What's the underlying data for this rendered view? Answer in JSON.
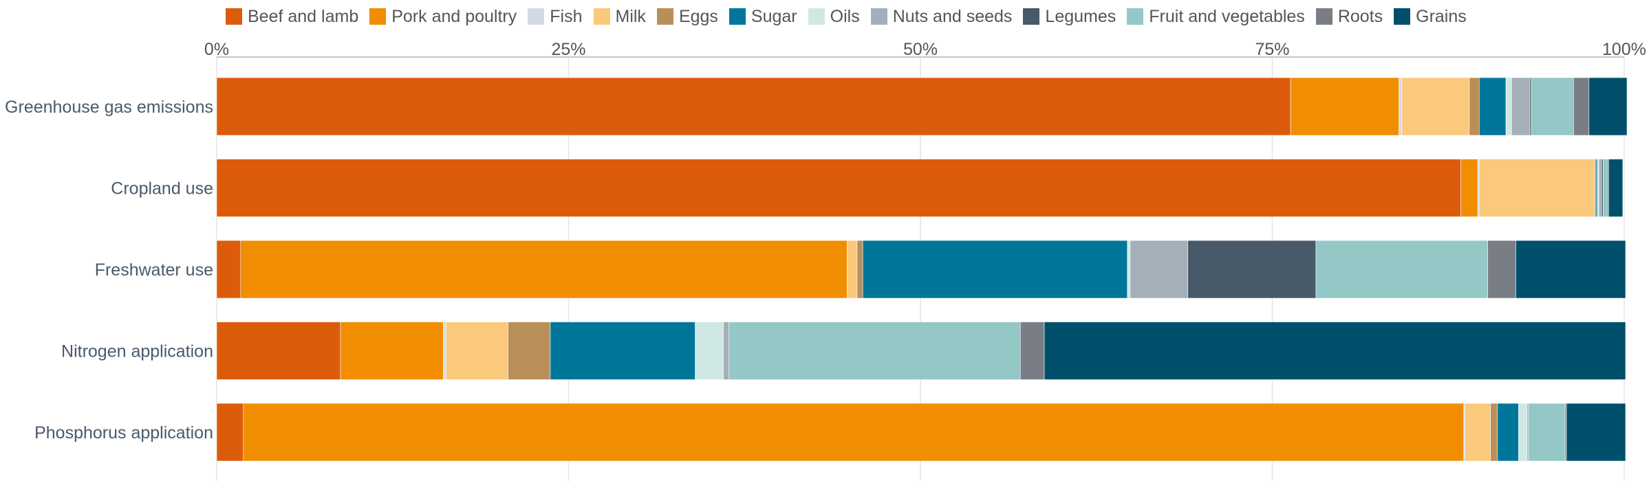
{
  "chart_data": {
    "type": "bar",
    "orientation": "horizontal",
    "stacked": true,
    "normalized": true,
    "xlim": [
      0,
      100
    ],
    "x_ticks": [
      "0%",
      "25%",
      "50%",
      "75%",
      "100%"
    ],
    "x_tick_values": [
      0,
      25,
      50,
      75,
      100
    ],
    "grid": true,
    "legend_position": "top",
    "categories": [
      "Greenhouse gas emissions",
      "Cropland use",
      "Freshwater use",
      "Nitrogen application",
      "Phosphorus application"
    ],
    "series": [
      {
        "name": "Beef and lamb",
        "color": "#dd5c0b",
        "values": [
          76.3,
          88.4,
          1.7,
          8.8,
          1.9
        ]
      },
      {
        "name": "Pork and poultry",
        "color": "#f18d00",
        "values": [
          7.7,
          1.2,
          43.1,
          7.3,
          86.7
        ]
      },
      {
        "name": "Fish",
        "color": "#d2dbe5",
        "values": [
          0.2,
          0.1,
          0.0,
          0.2,
          0.1
        ]
      },
      {
        "name": "Milk",
        "color": "#fbc97b",
        "values": [
          4.8,
          8.2,
          0.7,
          4.4,
          1.8
        ]
      },
      {
        "name": "Eggs",
        "color": "#b98f59",
        "values": [
          0.7,
          0.1,
          0.4,
          3.0,
          0.5
        ]
      },
      {
        "name": "Sugar",
        "color": "#00769a",
        "values": [
          1.9,
          0.1,
          18.8,
          10.3,
          1.5
        ]
      },
      {
        "name": "Oils",
        "color": "#d0e8e4",
        "values": [
          0.4,
          0.1,
          0.2,
          2.0,
          0.6
        ]
      },
      {
        "name": "Nuts and seeds",
        "color": "#a4afba",
        "values": [
          1.3,
          0.2,
          4.1,
          0.4,
          0.1
        ]
      },
      {
        "name": "Legumes",
        "color": "#48596a",
        "values": [
          0.1,
          0.1,
          9.1,
          0.0,
          0.0
        ]
      },
      {
        "name": "Fruit and vegetables",
        "color": "#93c8c6",
        "values": [
          3.0,
          0.3,
          12.2,
          20.7,
          2.6
        ]
      },
      {
        "name": "Roots",
        "color": "#797e86",
        "values": [
          1.1,
          0.1,
          2.0,
          1.7,
          0.1
        ]
      },
      {
        "name": "Grains",
        "color": "#00506b",
        "values": [
          2.7,
          1.0,
          7.8,
          41.3,
          4.2
        ]
      }
    ]
  }
}
